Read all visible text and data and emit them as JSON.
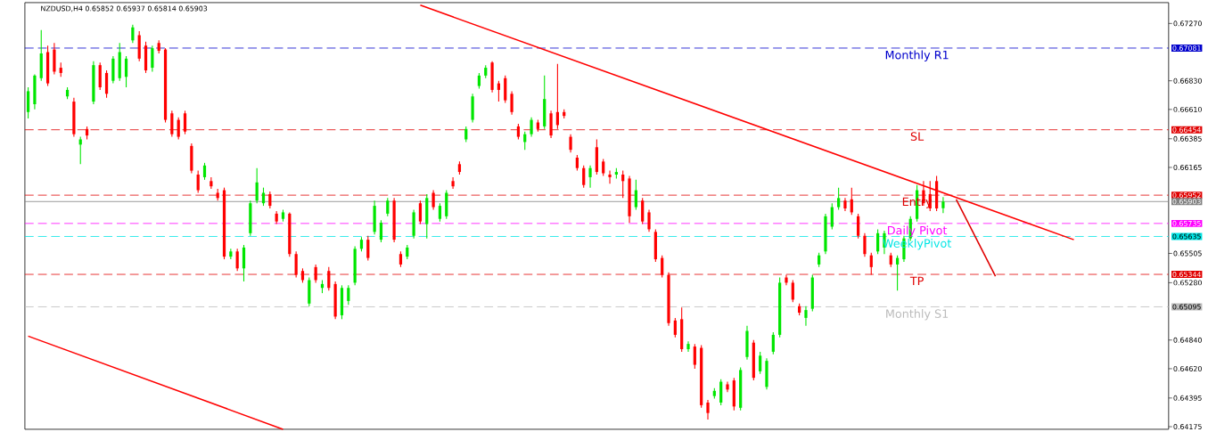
{
  "chart_data": {
    "type": "candlestick",
    "title": "NZDUSD,H4  0.65852 0.65937 0.65814 0.65903",
    "categories": [
      null,
      null,
      null,
      null,
      null,
      null,
      null,
      null,
      null,
      null,
      null,
      null,
      null,
      null,
      null,
      null,
      null,
      null,
      null,
      null,
      null,
      null,
      null,
      null,
      null,
      null,
      null,
      null,
      null,
      null,
      null,
      null,
      null,
      null,
      null,
      null,
      null,
      null,
      null,
      null,
      null,
      null,
      null,
      null,
      null,
      null,
      null,
      null,
      null,
      null,
      null,
      null,
      null,
      null,
      null,
      null,
      null,
      null,
      null,
      null,
      null,
      null,
      null,
      null,
      null,
      null,
      null,
      null,
      null,
      null,
      null,
      null,
      null,
      null,
      null,
      null,
      null,
      null,
      null,
      null,
      null,
      null,
      null,
      null,
      null,
      null,
      null,
      null,
      null,
      null,
      null,
      null,
      null,
      null,
      null,
      null,
      null,
      null,
      null,
      null,
      null,
      null,
      null,
      null,
      null,
      null,
      null,
      null,
      null,
      null,
      null,
      null,
      null,
      null,
      null,
      null,
      null,
      null,
      null,
      null,
      null,
      null,
      null,
      null,
      null,
      null,
      null,
      null,
      null,
      null,
      null,
      null,
      null,
      null,
      null,
      null,
      null,
      null,
      null,
      null,
      null,
      null,
      null,
      null,
      null,
      null,
      null,
      null,
      null,
      null,
      null,
      null,
      null,
      null,
      null,
      null,
      null,
      null,
      null,
      null,
      null,
      null,
      null,
      null,
      null,
      null,
      null,
      null,
      null,
      null,
      null,
      null,
      null,
      null,
      null
    ],
    "ohlc": [
      [
        0.6659,
        0.6678,
        0.6654,
        0.6675
      ],
      [
        0.6665,
        0.6688,
        0.6661,
        0.6687
      ],
      [
        0.6685,
        0.6722,
        0.6683,
        0.6704
      ],
      [
        0.6705,
        0.671,
        0.6679,
        0.6681
      ],
      [
        0.6707,
        0.6712,
        0.6688,
        0.669
      ],
      [
        0.6693,
        0.6697,
        0.6686,
        0.6689
      ],
      [
        0.6671,
        0.6678,
        0.6669,
        0.6676
      ],
      [
        0.6667,
        0.667,
        0.664,
        0.6642
      ],
      [
        0.6634,
        0.664,
        0.6619,
        0.6638
      ],
      [
        0.6646,
        0.6648,
        0.6638,
        0.6641
      ],
      [
        0.6667,
        0.6698,
        0.6665,
        0.6695
      ],
      [
        0.6695,
        0.6697,
        0.6676,
        0.6678
      ],
      [
        0.6689,
        0.6691,
        0.667,
        0.6673
      ],
      [
        0.6683,
        0.6702,
        0.6681,
        0.67
      ],
      [
        0.6685,
        0.6712,
        0.6683,
        0.6705
      ],
      [
        0.6686,
        0.6702,
        0.6678,
        0.67
      ],
      [
        0.6714,
        0.6726,
        0.6712,
        0.6724
      ],
      [
        0.6718,
        0.6721,
        0.6698,
        0.67
      ],
      [
        0.671,
        0.6713,
        0.6689,
        0.6691
      ],
      [
        0.6693,
        0.671,
        0.669,
        0.6708
      ],
      [
        0.6712,
        0.6714,
        0.6704,
        0.6706
      ],
      [
        0.6707,
        0.6708,
        0.6651,
        0.6653
      ],
      [
        0.6658,
        0.666,
        0.664,
        0.6642
      ],
      [
        0.6653,
        0.6655,
        0.6638,
        0.664
      ],
      [
        0.6658,
        0.666,
        0.6642,
        0.6644
      ],
      [
        0.6633,
        0.6635,
        0.6612,
        0.6614
      ],
      [
        0.6611,
        0.6614,
        0.6597,
        0.6599
      ],
      [
        0.6609,
        0.662,
        0.6607,
        0.6618
      ],
      [
        0.6606,
        0.6609,
        0.66,
        0.6602
      ],
      [
        0.6597,
        0.66,
        0.6591,
        0.6593
      ],
      [
        0.6599,
        0.6601,
        0.6546,
        0.6548
      ],
      [
        0.6548,
        0.6554,
        0.6546,
        0.6552
      ],
      [
        0.6552,
        0.6554,
        0.6537,
        0.6539
      ],
      [
        0.6539,
        0.6557,
        0.6529,
        0.6555
      ],
      [
        0.6566,
        0.6591,
        0.6564,
        0.6589
      ],
      [
        0.6591,
        0.6616,
        0.6589,
        0.6605
      ],
      [
        0.6589,
        0.6601,
        0.6587,
        0.6597
      ],
      [
        0.6596,
        0.6598,
        0.6585,
        0.6587
      ],
      [
        0.6581,
        0.6583,
        0.6573,
        0.6575
      ],
      [
        0.6577,
        0.6584,
        0.6575,
        0.6582
      ],
      [
        0.6581,
        0.6582,
        0.6548,
        0.655
      ],
      [
        0.655,
        0.6552,
        0.6532,
        0.6534
      ],
      [
        0.6537,
        0.6539,
        0.6528,
        0.653
      ],
      [
        0.6512,
        0.6532,
        0.651,
        0.653
      ],
      [
        0.654,
        0.6542,
        0.6528,
        0.653
      ],
      [
        0.6524,
        0.653,
        0.652,
        0.6527
      ],
      [
        0.6537,
        0.654,
        0.6522,
        0.6524
      ],
      [
        0.6527,
        0.6529,
        0.65,
        0.6502
      ],
      [
        0.6503,
        0.6526,
        0.65,
        0.6524
      ],
      [
        0.6514,
        0.6526,
        0.6511,
        0.6524
      ],
      [
        0.6528,
        0.6556,
        0.6526,
        0.6554
      ],
      [
        0.6554,
        0.6563,
        0.6552,
        0.6561
      ],
      [
        0.6561,
        0.6564,
        0.6545,
        0.6547
      ],
      [
        0.6567,
        0.6591,
        0.6565,
        0.6587
      ],
      [
        0.6561,
        0.6576,
        0.6559,
        0.6574
      ],
      [
        0.6581,
        0.6593,
        0.6579,
        0.6591
      ],
      [
        0.6591,
        0.6593,
        0.6559,
        0.6561
      ],
      [
        0.655,
        0.6552,
        0.654,
        0.6542
      ],
      [
        0.6548,
        0.6557,
        0.6546,
        0.6555
      ],
      [
        0.6564,
        0.6584,
        0.6562,
        0.6582
      ],
      [
        0.6589,
        0.6591,
        0.6573,
        0.6575
      ],
      [
        0.6573,
        0.6596,
        0.6562,
        0.6593
      ],
      [
        0.6597,
        0.6599,
        0.6584,
        0.6586
      ],
      [
        0.6577,
        0.6589,
        0.6575,
        0.6587
      ],
      [
        0.6579,
        0.6599,
        0.6577,
        0.6597
      ],
      [
        0.6606,
        0.6609,
        0.66,
        0.6602
      ],
      [
        0.6619,
        0.6621,
        0.6611,
        0.6613
      ],
      [
        0.6638,
        0.6648,
        0.6636,
        0.6646
      ],
      [
        0.6653,
        0.6673,
        0.6651,
        0.6671
      ],
      [
        0.6679,
        0.6689,
        0.6677,
        0.6687
      ],
      [
        0.6687,
        0.6695,
        0.6685,
        0.6693
      ],
      [
        0.6697,
        0.6698,
        0.6674,
        0.6676
      ],
      [
        0.6681,
        0.6683,
        0.6667,
        0.6676
      ],
      [
        0.6685,
        0.6687,
        0.6666,
        0.6668
      ],
      [
        0.6673,
        0.6675,
        0.6657,
        0.6659
      ],
      [
        0.6648,
        0.665,
        0.6638,
        0.664
      ],
      [
        0.6636,
        0.6644,
        0.663,
        0.6642
      ],
      [
        0.6642,
        0.6655,
        0.664,
        0.6653
      ],
      [
        0.6651,
        0.6653,
        0.6644,
        0.6646
      ],
      [
        0.6648,
        0.6687,
        0.6646,
        0.6669
      ],
      [
        0.6658,
        0.666,
        0.6639,
        0.6641
      ],
      [
        0.6659,
        0.6696,
        0.6646,
        0.6649
      ],
      [
        0.6659,
        0.6661,
        0.6654,
        0.6656
      ],
      [
        0.664,
        0.6642,
        0.6628,
        0.663
      ],
      [
        0.6624,
        0.6626,
        0.6614,
        0.6616
      ],
      [
        0.6616,
        0.6618,
        0.6601,
        0.6603
      ],
      [
        0.6609,
        0.6618,
        0.6601,
        0.6616
      ],
      [
        0.6632,
        0.6638,
        0.6611,
        0.6613
      ],
      [
        0.6621,
        0.6623,
        0.661,
        0.6612
      ],
      [
        0.6611,
        0.6614,
        0.6604,
        0.6609
      ],
      [
        0.6611,
        0.6616,
        0.6608,
        0.6613
      ],
      [
        0.6611,
        0.6614,
        0.6593,
        0.6606
      ],
      [
        0.6608,
        0.661,
        0.6574,
        0.6579
      ],
      [
        0.6586,
        0.6607,
        0.6584,
        0.6599
      ],
      [
        0.6591,
        0.6593,
        0.6573,
        0.6575
      ],
      [
        0.6582,
        0.6584,
        0.6567,
        0.6569
      ],
      [
        0.6567,
        0.6569,
        0.6544,
        0.6546
      ],
      [
        0.6547,
        0.6549,
        0.6532,
        0.6534
      ],
      [
        0.6534,
        0.6536,
        0.6495,
        0.6497
      ],
      [
        0.6499,
        0.6501,
        0.6486,
        0.6488
      ],
      [
        0.65,
        0.6509,
        0.6475,
        0.6477
      ],
      [
        0.6477,
        0.6483,
        0.6475,
        0.6481
      ],
      [
        0.6479,
        0.6481,
        0.6462,
        0.6465
      ],
      [
        0.6478,
        0.648,
        0.6432,
        0.6434
      ],
      [
        0.6436,
        0.6438,
        0.6423,
        0.6428
      ],
      [
        0.6441,
        0.6447,
        0.6439,
        0.6445
      ],
      [
        0.6436,
        0.6454,
        0.6434,
        0.6452
      ],
      [
        0.645,
        0.6452,
        0.6444,
        0.6446
      ],
      [
        0.6453,
        0.6455,
        0.643,
        0.6433
      ],
      [
        0.6432,
        0.6463,
        0.643,
        0.6461
      ],
      [
        0.6471,
        0.6495,
        0.6469,
        0.6491
      ],
      [
        0.6482,
        0.6484,
        0.6453,
        0.6455
      ],
      [
        0.646,
        0.6475,
        0.6458,
        0.6472
      ],
      [
        0.6448,
        0.647,
        0.6446,
        0.6468
      ],
      [
        0.6475,
        0.649,
        0.6473,
        0.6488
      ],
      [
        0.6488,
        0.6532,
        0.6486,
        0.6528
      ],
      [
        0.6532,
        0.6534,
        0.6526,
        0.6528
      ],
      [
        0.6528,
        0.653,
        0.6513,
        0.6515
      ],
      [
        0.651,
        0.6512,
        0.6503,
        0.6505
      ],
      [
        0.6501,
        0.651,
        0.6495,
        0.6507
      ],
      [
        0.6508,
        0.6534,
        0.6506,
        0.6532
      ],
      [
        0.6542,
        0.6551,
        0.654,
        0.6549
      ],
      [
        0.6552,
        0.6581,
        0.655,
        0.6579
      ],
      [
        0.6571,
        0.6589,
        0.6569,
        0.6586
      ],
      [
        0.6586,
        0.6601,
        0.6584,
        0.6593
      ],
      [
        0.6591,
        0.6593,
        0.6583,
        0.6585
      ],
      [
        0.6592,
        0.6601,
        0.658,
        0.6582
      ],
      [
        0.6579,
        0.6581,
        0.6562,
        0.6564
      ],
      [
        0.6564,
        0.6566,
        0.6548,
        0.655
      ],
      [
        0.6549,
        0.6551,
        0.6534,
        0.654
      ],
      [
        0.6552,
        0.6569,
        0.655,
        0.6566
      ],
      [
        0.6555,
        0.6568,
        0.655,
        0.6566
      ],
      [
        0.6549,
        0.6551,
        0.654,
        0.6542
      ],
      [
        0.6542,
        0.6549,
        0.6522,
        0.6547
      ],
      [
        0.6546,
        0.6564,
        0.6544,
        0.6562
      ],
      [
        0.6562,
        0.6579,
        0.656,
        0.6577
      ],
      [
        0.6577,
        0.6603,
        0.6575,
        0.6599
      ],
      [
        0.6599,
        0.6606,
        0.6587,
        0.6589
      ],
      [
        0.6596,
        0.6606,
        0.6583,
        0.6585
      ],
      [
        0.6606,
        0.661,
        0.6583,
        0.6585
      ],
      [
        0.65852,
        0.65937,
        0.65814,
        0.65903
      ],
      null,
      null,
      null,
      null,
      null,
      null,
      null,
      null,
      null,
      null,
      null,
      null,
      null,
      null,
      null,
      null,
      null,
      null,
      null,
      null,
      null,
      null,
      null,
      null,
      null,
      null,
      null,
      null,
      null,
      null,
      null,
      null,
      null,
      null
    ],
    "colors": [
      "#00e600",
      "#00e600",
      "#00e600",
      "#ff0000",
      "#ff0000",
      "#ff0000",
      "#00e600",
      "#ff0000",
      "#00e600",
      "#ff0000",
      "#00e600",
      "#ff0000",
      "#ff0000",
      "#00e600",
      "#00e600",
      "#00e600",
      "#00e600",
      "#ff0000",
      "#ff0000",
      "#00e600",
      "#ff0000",
      "#ff0000",
      "#ff0000",
      "#ff0000",
      "#ff0000",
      "#ff0000",
      "#ff0000",
      "#00e600",
      "#ff0000",
      "#ff0000",
      "#ff0000",
      "#00e600",
      "#ff0000",
      "#00e600",
      "#00e600",
      "#00e600",
      "#00e600",
      "#ff0000",
      "#ff0000",
      "#00e600",
      "#ff0000",
      "#ff0000",
      "#ff0000",
      "#00e600",
      "#ff0000",
      "#00e600",
      "#ff0000",
      "#ff0000",
      "#00e600",
      "#00e600",
      "#00e600",
      "#00e600",
      "#ff0000",
      "#00e600",
      "#00e600",
      "#00e600",
      "#ff0000",
      "#ff0000",
      "#00e600",
      "#00e600",
      "#ff0000",
      "#00e600",
      "#ff0000",
      "#00e600",
      "#00e600",
      "#ff0000",
      "#ff0000",
      "#00e600",
      "#00e600",
      "#00e600",
      "#00e600",
      "#ff0000",
      "#ff0000",
      "#ff0000",
      "#ff0000",
      "#ff0000",
      "#00e600",
      "#00e600",
      "#ff0000",
      "#00e600",
      "#ff0000",
      "#ff0000",
      "#ff0000",
      "#ff0000",
      "#ff0000",
      "#ff0000",
      "#00e600",
      "#ff0000",
      "#ff0000",
      "#ff0000",
      "#00e600",
      "#ff0000",
      "#ff0000",
      "#00e600",
      "#ff0000",
      "#ff0000",
      "#ff0000",
      "#ff0000",
      "#ff0000",
      "#ff0000",
      "#ff0000",
      "#00e600",
      "#ff0000",
      "#ff0000",
      "#ff0000",
      "#00e600",
      "#00e600",
      "#ff0000",
      "#ff0000",
      "#00e600",
      "#00e600",
      "#ff0000",
      "#00e600",
      "#00e600",
      "#00e600",
      "#00e600",
      "#ff0000",
      "#ff0000",
      "#ff0000",
      "#00e600",
      "#00e600",
      "#00e600",
      "#00e600",
      "#00e600",
      "#00e600",
      "#ff0000",
      "#ff0000",
      "#ff0000",
      "#ff0000",
      "#ff0000",
      "#00e600",
      "#00e600",
      "#ff0000",
      "#00e600",
      "#00e600",
      "#00e600",
      "#00e600",
      "#ff0000",
      "#ff0000",
      "#ff0000",
      "#00e600",
      null,
      null,
      null,
      null,
      null,
      null,
      null,
      null,
      null,
      null,
      null,
      null,
      null,
      null,
      null,
      null,
      null,
      null,
      null,
      null,
      null,
      null,
      null,
      null,
      null,
      null,
      null,
      null,
      null,
      null,
      null,
      null,
      null,
      null
    ],
    "series": [
      {
        "type": "line",
        "color": "#ff0000",
        "values": [
          null,
          null,
          null,
          null,
          null,
          null,
          null,
          null,
          null,
          null,
          null,
          null,
          null,
          null,
          null,
          null,
          null,
          null,
          null,
          null,
          null,
          null,
          null,
          null,
          null,
          null,
          null,
          null,
          null,
          null,
          null,
          null,
          null,
          null,
          null,
          null,
          null,
          null,
          null,
          null,
          null,
          null,
          null,
          null,
          null,
          null,
          null,
          null,
          null,
          null,
          null,
          null,
          null,
          null,
          null,
          null,
          null,
          null,
          null,
          null,
          0.6741,
          null,
          null,
          null,
          null,
          null,
          null,
          null,
          null,
          null,
          null,
          null,
          null,
          null,
          null,
          null,
          null,
          null,
          null,
          null,
          null,
          null,
          null,
          null,
          null,
          null,
          null,
          null,
          null,
          null,
          null,
          null,
          null,
          null,
          null,
          null,
          null,
          null,
          null,
          null,
          null,
          null,
          null,
          null,
          null,
          null,
          null,
          null,
          null,
          null,
          null,
          null,
          null,
          null,
          null,
          null,
          null,
          null,
          null,
          null,
          null,
          null,
          null,
          null,
          null,
          null,
          null,
          null,
          null,
          null,
          null,
          null,
          null,
          null,
          null,
          null,
          null,
          null,
          null,
          null,
          null,
          null,
          null,
          null,
          null,
          null,
          null,
          null,
          null,
          null,
          null,
          null,
          null,
          null,
          null,
          null,
          null,
          null,
          null,
          null,
          0.6561,
          null,
          null,
          null,
          null,
          null,
          null,
          null,
          null,
          null,
          null,
          null,
          null,
          null,
          null
        ]
      },
      {
        "type": "line",
        "color": "#ff0000",
        "values": [
          0.6487,
          null,
          null,
          null,
          null,
          null,
          null,
          null,
          null,
          null,
          null,
          null,
          null,
          null,
          null,
          null,
          null,
          null,
          null,
          null,
          null,
          null,
          null,
          null,
          null,
          null,
          null,
          null,
          null,
          null,
          null,
          null,
          null,
          null,
          null,
          null,
          null,
          null,
          null,
          0.64155,
          null,
          null,
          null,
          null,
          null,
          null,
          null,
          null,
          null,
          null,
          null,
          null,
          null,
          null,
          null,
          null,
          null,
          null,
          null,
          null,
          null,
          null,
          null,
          null,
          null,
          null,
          null,
          null,
          null,
          null,
          null,
          null,
          null,
          null,
          null,
          null,
          null,
          null,
          null,
          null,
          null,
          null,
          null,
          null,
          null,
          null,
          null,
          null,
          null,
          null,
          null,
          null,
          null,
          null,
          null,
          null,
          null,
          null,
          null,
          null,
          null,
          null,
          null,
          null,
          null,
          null,
          null,
          null,
          null,
          null,
          null,
          null,
          null,
          null,
          null,
          null,
          null,
          null,
          null,
          null,
          null,
          null,
          null,
          null,
          null,
          null,
          null,
          null,
          null,
          null,
          null,
          null,
          null,
          null,
          null,
          null,
          null,
          null,
          null,
          null,
          null,
          null,
          null,
          null,
          null,
          null,
          null,
          null,
          null,
          null,
          null,
          null,
          null,
          null,
          null,
          null,
          null,
          null,
          null,
          null,
          null,
          null,
          null,
          null,
          null,
          null,
          null,
          null,
          null,
          null,
          null,
          null,
          null,
          null,
          null
        ]
      },
      {
        "type": "line",
        "color": "#e00000",
        "values": [
          null,
          null,
          null,
          null,
          null,
          null,
          null,
          null,
          null,
          null,
          null,
          null,
          null,
          null,
          null,
          null,
          null,
          null,
          null,
          null,
          null,
          null,
          null,
          null,
          null,
          null,
          null,
          null,
          null,
          null,
          null,
          null,
          null,
          null,
          null,
          null,
          null,
          null,
          null,
          null,
          null,
          null,
          null,
          null,
          null,
          null,
          null,
          null,
          null,
          null,
          null,
          null,
          null,
          null,
          null,
          null,
          null,
          null,
          null,
          null,
          null,
          null,
          null,
          null,
          null,
          null,
          null,
          null,
          null,
          null,
          null,
          null,
          null,
          null,
          null,
          null,
          null,
          null,
          null,
          null,
          null,
          null,
          null,
          null,
          null,
          null,
          null,
          null,
          null,
          null,
          null,
          null,
          null,
          null,
          null,
          null,
          null,
          null,
          null,
          null,
          null,
          null,
          null,
          null,
          null,
          null,
          null,
          null,
          null,
          null,
          null,
          null,
          null,
          null,
          null,
          null,
          null,
          null,
          null,
          null,
          null,
          null,
          null,
          null,
          null,
          null,
          null,
          null,
          null,
          null,
          null,
          null,
          null,
          null,
          null,
          null,
          null,
          null,
          null,
          null,
          null,
          null,
          0.6592,
          null,
          null,
          null,
          null,
          null,
          0.6533,
          null,
          null,
          null,
          null,
          null,
          null,
          null,
          null,
          null,
          null,
          null,
          null,
          null,
          null,
          null,
          null,
          null,
          null,
          null,
          null,
          null,
          null,
          null,
          null,
          null,
          null
        ]
      }
    ],
    "ylim": [
      0.64155,
      0.6743
    ],
    "yticks": [
      {
        "value": 0.6727,
        "label": "0.67270"
      },
      {
        "value": 0.67081,
        "label": "0.67081"
      },
      {
        "value": 0.6683,
        "label": "0.66830"
      },
      {
        "value": 0.6661,
        "label": "0.66610"
      },
      {
        "value": 0.66454,
        "label": "0.66454"
      },
      {
        "value": 0.66385,
        "label": "0.66385"
      },
      {
        "value": 0.66165,
        "label": "0.66165"
      },
      {
        "value": 0.65952,
        "label": "0.65952"
      },
      {
        "value": 0.65903,
        "label": "0.65903"
      },
      {
        "value": 0.65735,
        "label": "0.65735"
      },
      {
        "value": 0.65635,
        "label": "0.65635"
      },
      {
        "value": 0.65505,
        "label": "0.65505"
      },
      {
        "value": 0.65344,
        "label": "0.65344"
      },
      {
        "value": 0.6528,
        "label": "0.65280"
      },
      {
        "value": 0.65095,
        "label": "0.65095"
      },
      {
        "value": 0.6484,
        "label": "0.64840"
      },
      {
        "value": 0.6462,
        "label": "0.64620"
      },
      {
        "value": 0.64395,
        "label": "0.64395"
      },
      {
        "value": 0.64175,
        "label": "0.64175"
      }
    ],
    "tick_labels": "y",
    "ref_lines": [
      {
        "axis": "y",
        "value": 0.67081,
        "label": "Monthly R1",
        "color": "#0000cc",
        "line_style": "dashed"
      },
      {
        "axis": "y",
        "value": 0.66454,
        "label": "SL",
        "color": "#e00000",
        "line_style": "dashed"
      },
      {
        "axis": "y",
        "value": 0.65952,
        "label": "Entry",
        "color": "#e00000",
        "line_style": "dashed"
      },
      {
        "axis": "y",
        "value": 0.65903,
        "color": "#808080",
        "line_style": "solid"
      },
      {
        "axis": "y",
        "value": 0.65735,
        "label": "Daily Pivot",
        "color": "#ff00ff",
        "line_style": "dashed"
      },
      {
        "axis": "y",
        "value": 0.65635,
        "label": "WeeklyPivot",
        "color": "#00e5e5",
        "line_style": "dashed"
      },
      {
        "axis": "y",
        "value": 0.65344,
        "label": "TP",
        "color": "#e00000",
        "line_style": "dashed"
      },
      {
        "axis": "y",
        "value": 0.65095,
        "label": "Monthly S1",
        "color": "#bbbbbb",
        "line_style": "dashed"
      }
    ]
  }
}
